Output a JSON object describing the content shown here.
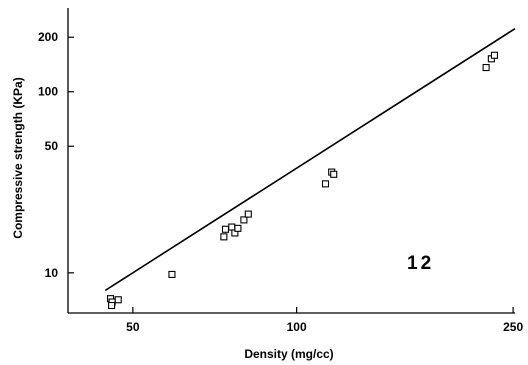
{
  "chart_data": {
    "type": "scatter",
    "xlabel": "Density (mg/cc)",
    "ylabel": "Compressive strength (KPa)",
    "x_scale": "log",
    "y_scale": "log",
    "xlim": [
      38,
      252
    ],
    "ylim": [
      6.0,
      290
    ],
    "x_ticks": [
      {
        "value": 50,
        "label": "50"
      },
      {
        "value": 100,
        "label": "100"
      },
      {
        "value": 250,
        "label": "250"
      }
    ],
    "y_ticks": [
      {
        "value": 10,
        "label": "10"
      },
      {
        "value": 50,
        "label": "50"
      },
      {
        "value": 100,
        "label": "100"
      },
      {
        "value": 200,
        "label": "200"
      }
    ],
    "annotation": "12",
    "grid": false,
    "series": [
      {
        "marker": "open-square",
        "points": [
          {
            "x": 45.5,
            "y": 7.2
          },
          {
            "x": 45.8,
            "y": 6.9
          },
          {
            "x": 45.7,
            "y": 6.6
          },
          {
            "x": 47.0,
            "y": 7.1
          },
          {
            "x": 59.0,
            "y": 9.8
          },
          {
            "x": 73.5,
            "y": 15.8
          },
          {
            "x": 74.0,
            "y": 17.4
          },
          {
            "x": 76.0,
            "y": 17.9
          },
          {
            "x": 77.0,
            "y": 16.6
          },
          {
            "x": 78.0,
            "y": 17.6
          },
          {
            "x": 80.0,
            "y": 19.6
          },
          {
            "x": 81.5,
            "y": 21.1
          },
          {
            "x": 113.0,
            "y": 31.0
          },
          {
            "x": 116.0,
            "y": 36.0
          },
          {
            "x": 117.0,
            "y": 35.0
          },
          {
            "x": 223.0,
            "y": 136.0
          },
          {
            "x": 228.0,
            "y": 152.0
          },
          {
            "x": 231.0,
            "y": 159.0
          }
        ]
      },
      {
        "type": "line",
        "x": [
          44.5,
          252
        ],
        "y": [
          8.0,
          223
        ]
      }
    ]
  }
}
